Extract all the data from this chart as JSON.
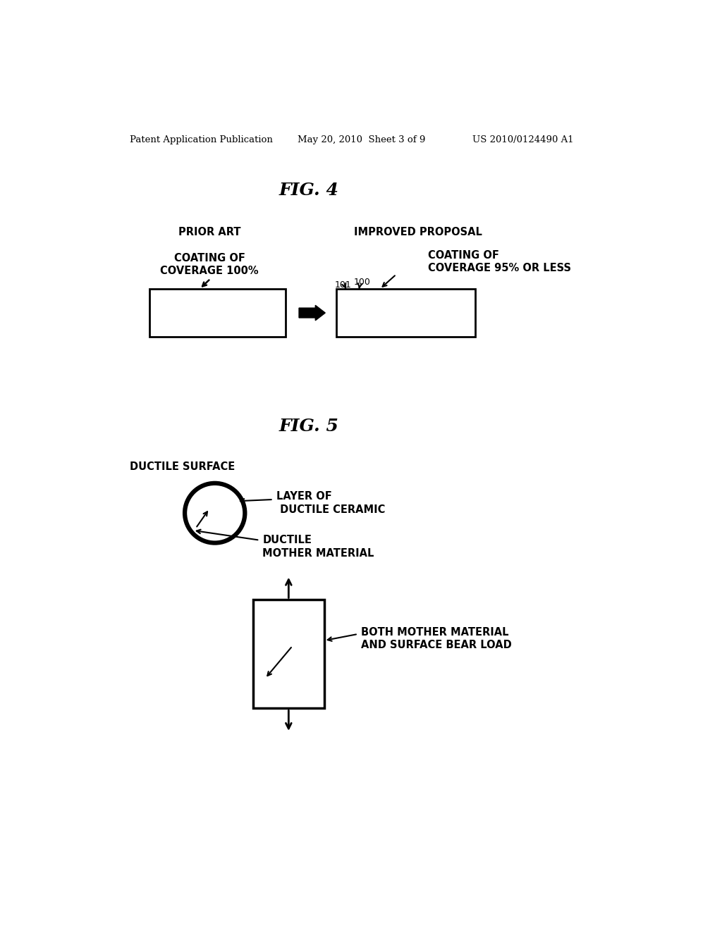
{
  "background_color": "#ffffff",
  "header_left": "Patent Application Publication",
  "header_center": "May 20, 2010  Sheet 3 of 9",
  "header_right": "US 2010/0124490 A1",
  "fig4_title": "FIG. 4",
  "fig5_title": "FIG. 5",
  "prior_art_label": "PRIOR ART",
  "improved_label": "IMPROVED PROPOSAL",
  "coating_100_label": "COATING OF\nCOVERAGE 100%",
  "coating_95_label": "COATING OF\nCOVERAGE 95% OR LESS",
  "label_101": "101",
  "label_100": "100",
  "ductile_surface_label": "DUCTILE SURFACE",
  "layer_ceramic_label": "LAYER OF\n DUCTILE CERAMIC",
  "mother_material_label": "DUCTILE\nMOTHER MATERIAL",
  "both_bear_label": "BOTH MOTHER MATERIAL\nAND SURFACE BEAR LOAD"
}
